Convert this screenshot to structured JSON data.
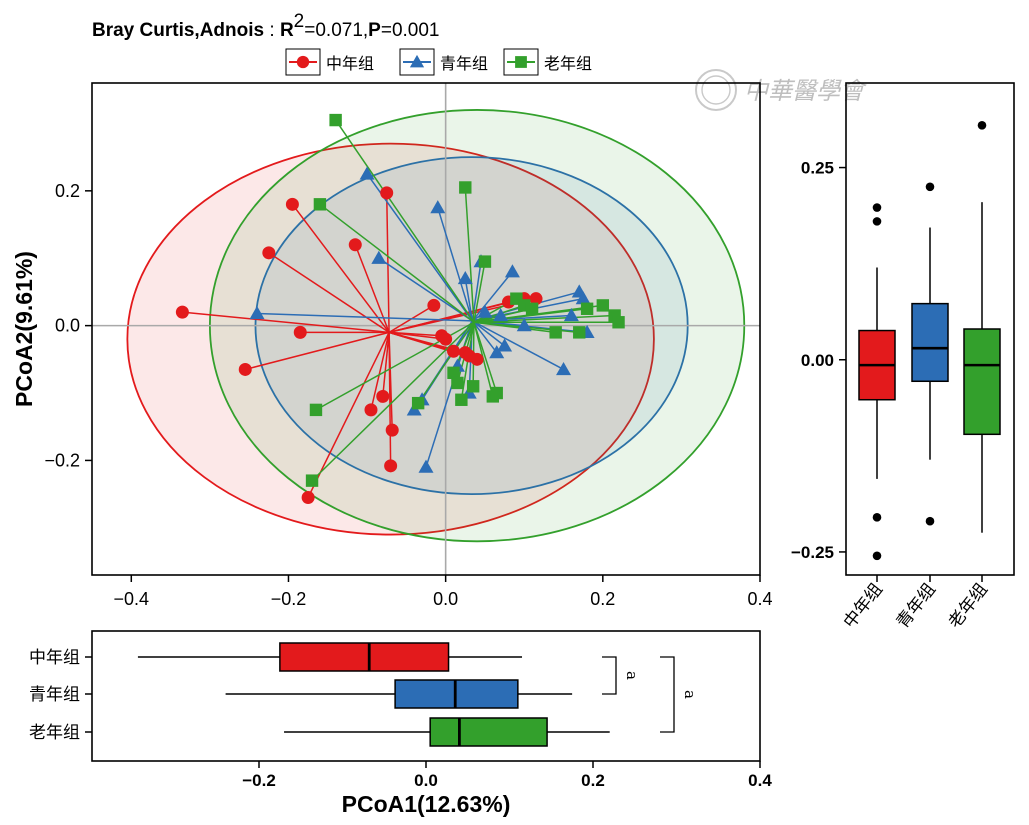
{
  "title": {
    "metric_label": "Bray Curtis,Adnois",
    "separator": " : ",
    "r2_label": "R",
    "r2_sup": "2",
    "r2_value": "=0.071,",
    "p_label": "P",
    "p_value": "=0.001"
  },
  "watermark": {
    "text": "中華醫學會"
  },
  "colors": {
    "中年组": "#e31a1c",
    "青年组": "#2c6db5",
    "老年组": "#33a02c",
    "ref_line": "#a9a9a9"
  },
  "legend": {
    "placement": "top-center",
    "items": [
      {
        "label": "中年组",
        "marker": "circle"
      },
      {
        "label": "青年组",
        "marker": "triangle"
      },
      {
        "label": "老年组",
        "marker": "square"
      }
    ]
  },
  "chart_data": [
    {
      "type": "scatter",
      "xlim": [
        -0.45,
        0.4
      ],
      "ylim": [
        -0.37,
        0.36
      ],
      "x_ticks": [
        "−0.4",
        "−0.2",
        "0.0",
        "0.2",
        "0.4"
      ],
      "y_ticks": [
        "−0.2",
        "0.0",
        "0.2"
      ],
      "x_tick_values": [
        -0.4,
        -0.2,
        0.0,
        0.2,
        0.4
      ],
      "y_tick_values": [
        -0.2,
        0.0,
        0.2
      ],
      "ylabel": "PCoA2(9.61%)",
      "reference_lines": {
        "x": 0,
        "y": 0
      },
      "series": [
        {
          "name": "中年组",
          "marker": "circle",
          "centroid": [
            -0.072,
            -0.01
          ],
          "ellipse": {
            "cx": -0.07,
            "cy": -0.02,
            "rx": 0.335,
            "ry": 0.29
          },
          "points": [
            [
              -0.335,
              0.02
            ],
            [
              -0.255,
              -0.065
            ],
            [
              -0.225,
              0.108
            ],
            [
              -0.195,
              0.18
            ],
            [
              -0.175,
              -0.255
            ],
            [
              -0.185,
              -0.01
            ],
            [
              -0.115,
              0.12
            ],
            [
              -0.095,
              -0.125
            ],
            [
              -0.075,
              0.197
            ],
            [
              -0.08,
              -0.105
            ],
            [
              -0.068,
              -0.155
            ],
            [
              -0.07,
              -0.208
            ],
            [
              -0.015,
              0.03
            ],
            [
              -0.005,
              -0.015
            ],
            [
              0.0,
              -0.02
            ],
            [
              0.01,
              -0.038
            ],
            [
              0.025,
              -0.04
            ],
            [
              0.03,
              -0.045
            ],
            [
              0.04,
              -0.05
            ],
            [
              0.08,
              0.035
            ],
            [
              0.1,
              0.04
            ],
            [
              0.115,
              0.04
            ]
          ]
        },
        {
          "name": "青年组",
          "marker": "triangle",
          "centroid": [
            0.034,
            0.007
          ],
          "ellipse": {
            "cx": 0.033,
            "cy": 0.0,
            "rx": 0.275,
            "ry": 0.25
          },
          "points": [
            [
              -0.24,
              0.018
            ],
            [
              -0.1,
              0.225
            ],
            [
              -0.085,
              0.1
            ],
            [
              -0.04,
              -0.125
            ],
            [
              -0.03,
              -0.11
            ],
            [
              -0.025,
              -0.21
            ],
            [
              -0.01,
              0.175
            ],
            [
              0.015,
              -0.06
            ],
            [
              0.025,
              0.07
            ],
            [
              0.03,
              -0.1
            ],
            [
              0.045,
              0.095
            ],
            [
              0.05,
              0.02
            ],
            [
              0.065,
              -0.04
            ],
            [
              0.07,
              0.015
            ],
            [
              0.075,
              -0.03
            ],
            [
              0.085,
              0.08
            ],
            [
              0.1,
              0.0
            ],
            [
              0.15,
              -0.065
            ],
            [
              0.16,
              0.015
            ],
            [
              0.17,
              0.05
            ],
            [
              0.175,
              0.04
            ],
            [
              0.18,
              -0.01
            ]
          ]
        },
        {
          "name": "老年组",
          "marker": "square",
          "centroid": [
            0.036,
            0.005
          ],
          "ellipse": {
            "cx": 0.04,
            "cy": 0.0,
            "rx": 0.34,
            "ry": 0.32
          },
          "points": [
            [
              -0.14,
              0.305
            ],
            [
              -0.165,
              -0.125
            ],
            [
              -0.17,
              -0.23
            ],
            [
              -0.16,
              0.18
            ],
            [
              -0.035,
              -0.115
            ],
            [
              0.01,
              -0.07
            ],
            [
              0.015,
              -0.085
            ],
            [
              0.02,
              -0.11
            ],
            [
              0.025,
              0.205
            ],
            [
              0.035,
              -0.09
            ],
            [
              0.05,
              0.095
            ],
            [
              0.06,
              -0.105
            ],
            [
              0.065,
              -0.1
            ],
            [
              0.09,
              0.04
            ],
            [
              0.1,
              0.03
            ],
            [
              0.11,
              0.025
            ],
            [
              0.14,
              -0.01
            ],
            [
              0.17,
              -0.01
            ],
            [
              0.18,
              0.025
            ],
            [
              0.2,
              0.03
            ],
            [
              0.215,
              0.015
            ],
            [
              0.22,
              0.005
            ]
          ]
        }
      ]
    },
    {
      "type": "boxplot",
      "orientation": "vertical",
      "axis": "PCoA2",
      "ylim": [
        -0.28,
        0.36
      ],
      "y_ticks": [
        "−0.25",
        "0.00",
        "0.25"
      ],
      "y_tick_values": [
        -0.25,
        0.0,
        0.25
      ],
      "categories": [
        "中年组",
        "青年组",
        "老年组"
      ],
      "series": [
        {
          "name": "中年组",
          "min": -0.155,
          "q1": -0.052,
          "median": -0.007,
          "q3": 0.038,
          "max": 0.12,
          "outliers": [
            0.198,
            0.18,
            -0.205,
            -0.255
          ]
        },
        {
          "name": "青年组",
          "min": -0.13,
          "q1": -0.028,
          "median": 0.015,
          "q3": 0.073,
          "max": 0.172,
          "outliers": [
            0.225,
            -0.21
          ]
        },
        {
          "name": "老年组",
          "min": -0.225,
          "q1": -0.097,
          "median": -0.007,
          "q3": 0.04,
          "max": 0.205,
          "outliers": [
            0.305
          ]
        }
      ]
    },
    {
      "type": "boxplot",
      "orientation": "horizontal",
      "axis": "PCoA1",
      "xlim": [
        -0.4,
        0.4
      ],
      "x_ticks": [
        "−0.2",
        "0.0",
        "0.2",
        "0.4"
      ],
      "x_tick_values": [
        -0.2,
        0.0,
        0.2,
        0.4
      ],
      "xlabel": "PCoA1(12.63%)",
      "categories": [
        "中年组",
        "青年组",
        "老年组"
      ],
      "series": [
        {
          "name": "中年组",
          "min": -0.345,
          "q1": -0.175,
          "median": -0.068,
          "q3": 0.027,
          "max": 0.115
        },
        {
          "name": "青年组",
          "min": -0.24,
          "q1": -0.037,
          "median": 0.035,
          "q3": 0.11,
          "max": 0.175
        },
        {
          "name": "老年组",
          "min": -0.17,
          "q1": 0.005,
          "median": 0.04,
          "q3": 0.145,
          "max": 0.22
        }
      ],
      "significance": [
        {
          "groups": [
            "中年组",
            "青年组"
          ],
          "label": "a"
        },
        {
          "groups": [
            "中年组",
            "老年组"
          ],
          "label": "a"
        }
      ]
    }
  ]
}
